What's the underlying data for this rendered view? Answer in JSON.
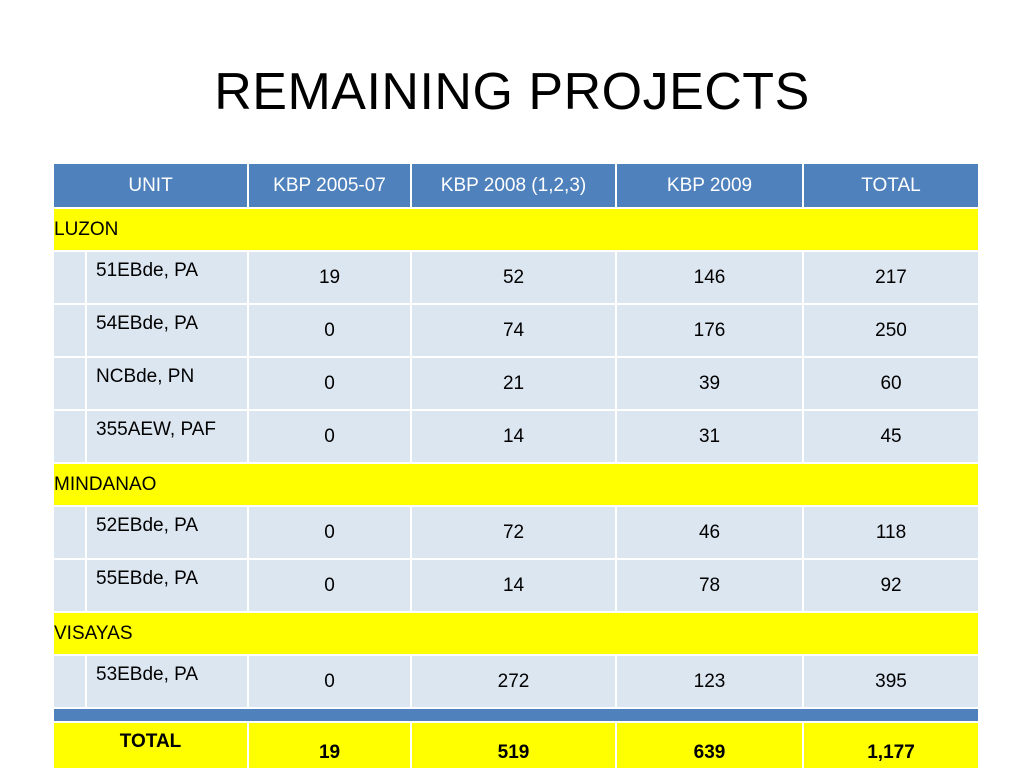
{
  "title": "REMAINING PROJECTS",
  "colors": {
    "header_bg": "#4f81bd",
    "region_bg": "#ffff00",
    "row_bg": "#dce6f1"
  },
  "table": {
    "headers": [
      "UNIT",
      "KBP 2005-07",
      "KBP 2008 (1,2,3)",
      "KBP 2009",
      "TOTAL"
    ],
    "regions": [
      {
        "name": "LUZON",
        "rows": [
          {
            "unit": "51EBde, PA",
            "values": [
              "19",
              "52",
              "146",
              "217"
            ]
          },
          {
            "unit": "54EBde, PA",
            "values": [
              "0",
              "74",
              "176",
              "250"
            ]
          },
          {
            "unit": "NCBde, PN",
            "values": [
              "0",
              "21",
              "39",
              "60"
            ]
          },
          {
            "unit": "355AEW, PAF",
            "values": [
              "0",
              "14",
              "31",
              "45"
            ]
          }
        ]
      },
      {
        "name": "MINDANAO",
        "rows": [
          {
            "unit": "52EBde, PA",
            "values": [
              "0",
              "72",
              "46",
              "118"
            ]
          },
          {
            "unit": "55EBde, PA",
            "values": [
              "0",
              "14",
              "78",
              "92"
            ]
          }
        ]
      },
      {
        "name": "VISAYAS",
        "rows": [
          {
            "unit": "53EBde, PA",
            "values": [
              "0",
              "272",
              "123",
              "395"
            ]
          }
        ]
      }
    ],
    "total": {
      "label": "TOTAL",
      "values": [
        "19",
        "519",
        "639",
        "1,177"
      ]
    }
  }
}
